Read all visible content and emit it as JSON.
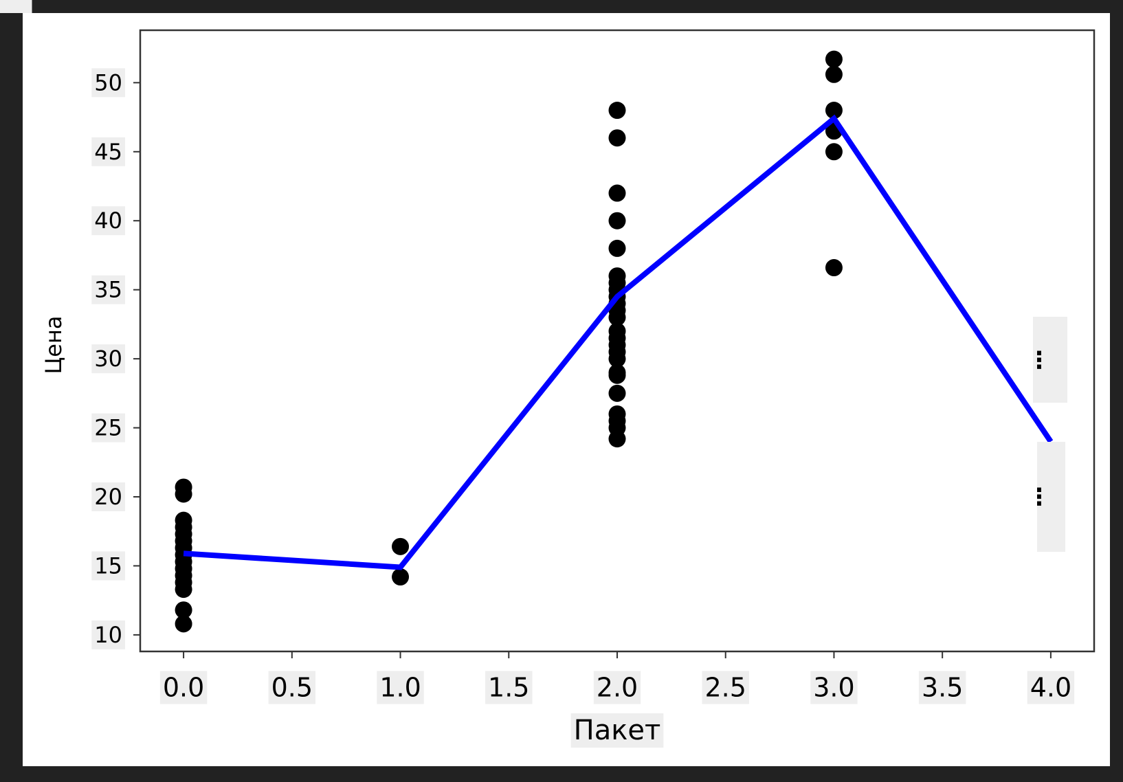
{
  "chart_data": {
    "type": "scatter",
    "xlabel": "Пакет",
    "ylabel": "Цена",
    "xlim": [
      -0.2,
      4.2
    ],
    "ylim": [
      8.8,
      53.8
    ],
    "xticks": [
      {
        "value": 0,
        "label": "0.0"
      },
      0.5,
      {
        "value": 1,
        "label": "1.0"
      },
      1.5,
      {
        "value": 2,
        "label": "2.0"
      },
      2.5,
      {
        "value": 3,
        "label": "3.0"
      },
      3.5,
      {
        "value": 4,
        "label": "4.0"
      }
    ],
    "yticks": [
      10,
      15,
      20,
      25,
      30,
      35,
      40,
      45,
      50
    ],
    "grid": false,
    "series": [
      {
        "color": "#000000",
        "style": "points",
        "x": [
          0,
          0,
          0,
          0,
          0,
          0,
          0,
          0,
          0,
          0,
          0,
          0,
          0,
          0,
          0,
          1,
          1,
          2,
          2,
          2,
          2,
          2,
          2,
          2,
          2,
          2,
          2,
          2,
          2,
          2,
          2,
          2,
          2,
          2,
          2,
          2,
          2,
          2,
          2,
          2,
          2,
          3,
          3,
          3,
          3,
          3,
          3
        ],
        "values": [
          20.7,
          20.2,
          18.3,
          17.8,
          17.3,
          16.8,
          16.3,
          15.8,
          15.3,
          14.8,
          14.3,
          13.8,
          13.3,
          11.8,
          10.8,
          16.4,
          14.2,
          48,
          46,
          42,
          40,
          38,
          36,
          35.5,
          35,
          34.5,
          34,
          33.5,
          33,
          32,
          31.5,
          31,
          30.5,
          30,
          29,
          28.8,
          27.5,
          26,
          25.5,
          25,
          24.2,
          51.7,
          50.6,
          48,
          46.5,
          45,
          36.6
        ]
      },
      {
        "color": "#0000ff",
        "style": "line",
        "x": [
          0,
          1,
          2,
          3,
          4
        ],
        "values": [
          15.9,
          14.9,
          34.5,
          47.4,
          24
        ]
      }
    ]
  },
  "controls": [
    "⋮",
    "⋮"
  ]
}
